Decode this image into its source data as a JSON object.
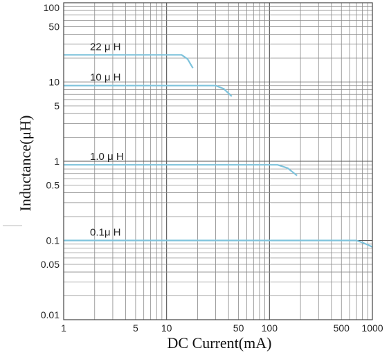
{
  "chart_data": {
    "type": "line",
    "title": "",
    "xlabel": "DC Current(mA)",
    "ylabel": "Inductance(μH)",
    "x_scale": "log",
    "y_scale": "log",
    "xlim": [
      1,
      1000
    ],
    "ylim": [
      0.01,
      100
    ],
    "grid": true,
    "x_ticks": [
      {
        "value": 1,
        "label": "1"
      },
      {
        "value": 5,
        "label": "5"
      },
      {
        "value": 10,
        "label": "10"
      },
      {
        "value": 50,
        "label": "50"
      },
      {
        "value": 100,
        "label": "100"
      },
      {
        "value": 500,
        "label": "500"
      },
      {
        "value": 1000,
        "label": "1000"
      }
    ],
    "y_ticks": [
      {
        "value": 100,
        "label": "100"
      },
      {
        "value": 50,
        "label": "50"
      },
      {
        "value": 10,
        "label": "10"
      },
      {
        "value": 5,
        "label": "5"
      },
      {
        "value": 1,
        "label": "1"
      },
      {
        "value": 0.5,
        "label": "0.5"
      },
      {
        "value": 0.1,
        "label": "0.1"
      },
      {
        "value": 0.05,
        "label": "0.05"
      },
      {
        "value": 0.01,
        "label": "0.01"
      }
    ],
    "series": [
      {
        "name": "22 μ H",
        "color": "#7ec3dc",
        "x": [
          1,
          14,
          16,
          18
        ],
        "y": [
          22,
          22,
          19.5,
          15
        ]
      },
      {
        "name": "10 μ H",
        "color": "#7ec3dc",
        "x": [
          1,
          30,
          36,
          43
        ],
        "y": [
          9,
          9,
          8.2,
          6.6
        ]
      },
      {
        "name": "1.0 μ H",
        "color": "#7ec3dc",
        "x": [
          1,
          120,
          150,
          185
        ],
        "y": [
          0.9,
          0.9,
          0.82,
          0.66
        ]
      },
      {
        "name": "0.1μ H",
        "color": "#7ec3dc",
        "x": [
          1,
          700,
          820,
          1000
        ],
        "y": [
          0.1,
          0.1,
          0.093,
          0.083
        ]
      }
    ]
  }
}
